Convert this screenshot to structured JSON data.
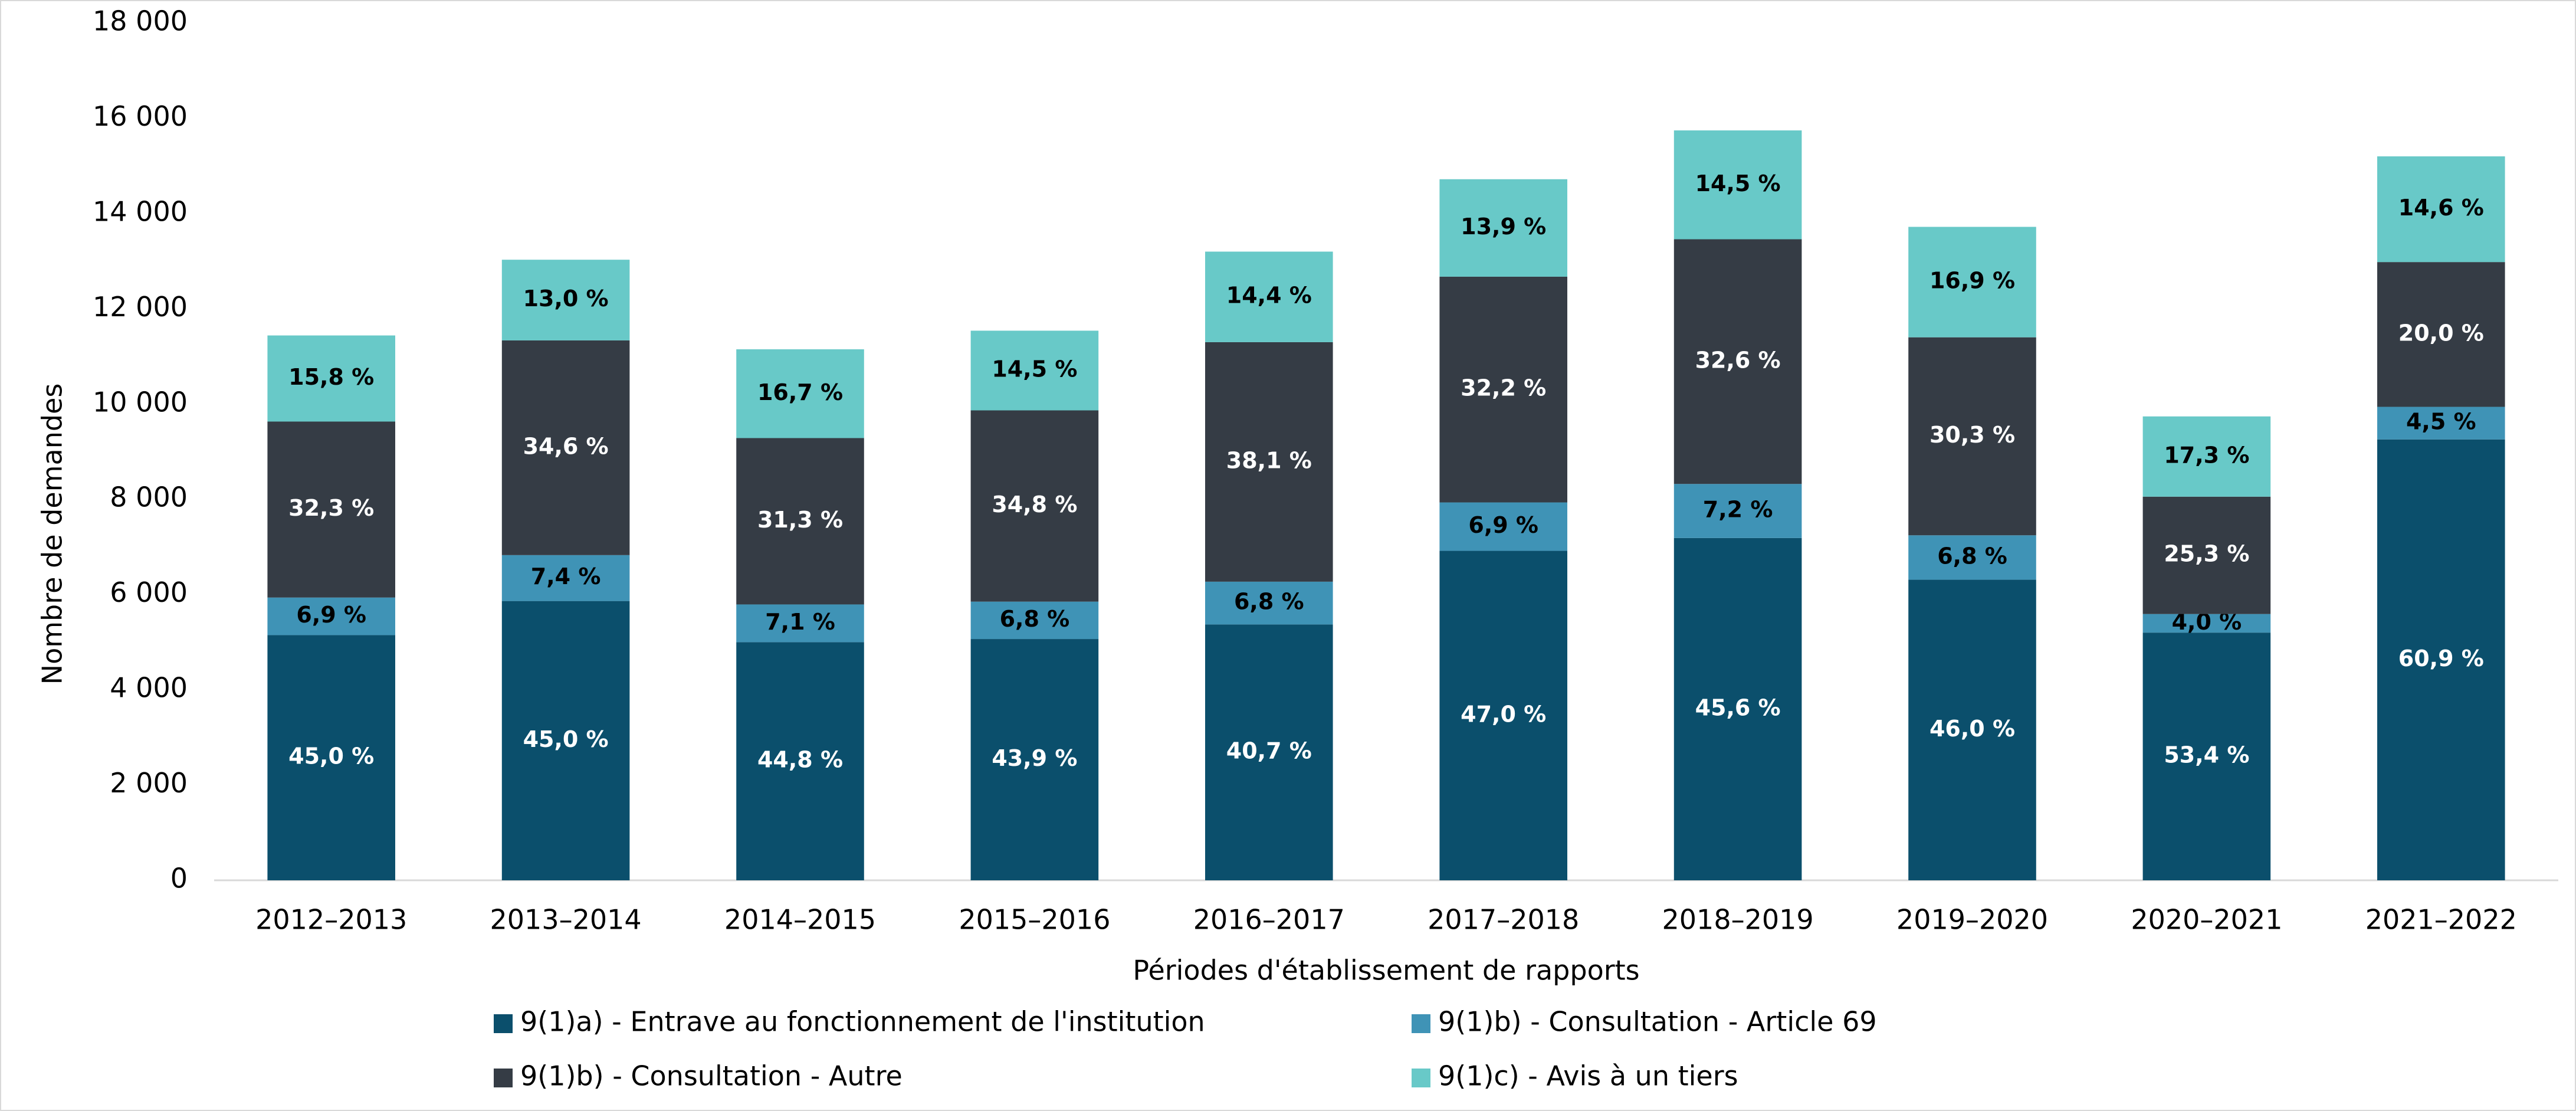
{
  "chart_data": {
    "type": "stacked_bar",
    "y_axis_title": "Nombre de demandes",
    "x_axis_title": "Périodes d'établissement de rapports",
    "categories": [
      "2012–2013",
      "2013–2014",
      "2014–2015",
      "2015–2016",
      "2016–2017",
      "2017–2018",
      "2018–2019",
      "2019–2020",
      "2020–2021",
      "2021–2022"
    ],
    "series": [
      {
        "name": "9(1)a) - Entrave au fonctionnement de l'institution",
        "color": "#0b4f6c",
        "label_color": "#ffffff",
        "values": [
          5148,
          5864,
          5000,
          5066,
          5372,
          6918,
          7187,
          6311,
          5201,
          9257
        ],
        "value_labels": [
          "45,0 %",
          "45,0 %",
          "44,8 %",
          "43,9 %",
          "40,7 %",
          "47,0 %",
          "45,6 %",
          "46,0 %",
          "53,4 %",
          "60,9 %"
        ]
      },
      {
        "name": "9(1)b) - Consultation - Article 69",
        "color": "#3f93b6",
        "label_color": "#000000",
        "values": [
          789,
          964,
          792,
          785,
          898,
          1016,
          1135,
          933,
          390,
          684
        ],
        "value_labels": [
          "6,9 %",
          "7,4 %",
          "7,1 %",
          "6,8 %",
          "6,8 %",
          "6,9 %",
          "7,2 %",
          "6,8 %",
          "4,0 %",
          "4,5 %"
        ]
      },
      {
        "name": "9(1)b) - Consultation - Autre",
        "color": "#353c45",
        "label_color": "#ffffff",
        "values": [
          3695,
          4508,
          3493,
          4016,
          5029,
          4740,
          5138,
          4157,
          2464,
          3040
        ],
        "value_labels": [
          "32,3 %",
          "34,6 %",
          "31,3 %",
          "34,8 %",
          "38,1 %",
          "32,2 %",
          "32,6 %",
          "30,3 %",
          "25,3 %",
          "20,0 %"
        ]
      },
      {
        "name": "9(1)c) - Avis à un tiers",
        "color": "#68c9c8",
        "label_color": "#000000",
        "values": [
          1808,
          1694,
          1864,
          1673,
          1901,
          2046,
          2285,
          2319,
          1685,
          2219
        ],
        "value_labels": [
          "15,8 %",
          "13,0 %",
          "16,7 %",
          "14,5 %",
          "14,4 %",
          "13,9 %",
          "14,5 %",
          "16,9 %",
          "17,3 %",
          "14,6 %"
        ]
      }
    ],
    "ylim": [
      0,
      18000
    ],
    "yticks": [
      0,
      {
        "value": 2000,
        "label": "2 000"
      },
      {
        "value": 4000,
        "label": "4 000"
      },
      {
        "value": 6000,
        "label": "6 000"
      },
      {
        "value": 8000,
        "label": "8 000"
      },
      {
        "value": 10000,
        "label": "10 000"
      },
      {
        "value": 12000,
        "label": "12 000"
      },
      {
        "value": 14000,
        "label": "14 000"
      },
      {
        "value": 16000,
        "label": "16 000"
      },
      {
        "value": 18000,
        "label": "18 000"
      }
    ],
    "grid": false
  }
}
